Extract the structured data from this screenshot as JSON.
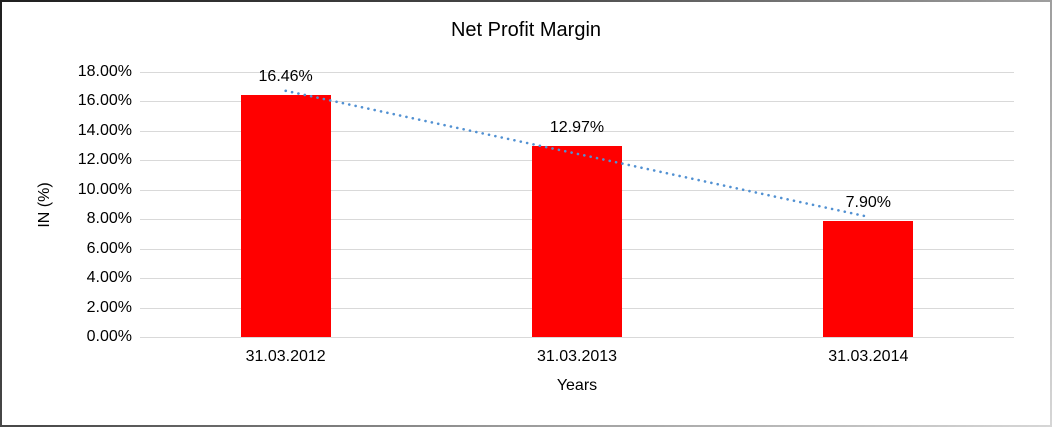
{
  "chart_data": {
    "type": "bar",
    "title": "Net Profit Margin",
    "xlabel": "Years",
    "ylabel": "IN (%)",
    "categories": [
      "31.03.2012",
      "31.03.2013",
      "31.03.2014"
    ],
    "values": [
      16.46,
      12.97,
      7.9
    ],
    "data_labels": [
      "16.46%",
      "12.97%",
      "7.90%"
    ],
    "y_ticks": [
      "18.00%",
      "16.00%",
      "14.00%",
      "12.00%",
      "10.00%",
      "8.00%",
      "6.00%",
      "4.00%",
      "2.00%",
      "0.00%"
    ],
    "ylim": [
      0,
      18
    ],
    "y_tick_step": 2,
    "grid": true,
    "legend": "none",
    "trendline": {
      "type": "linear",
      "style": "dotted"
    },
    "colors": {
      "bar": "#ff0000",
      "trendline": "#5291d2",
      "gridline": "#d9d9d9",
      "text": "#000000",
      "background": "#ffffff"
    }
  }
}
